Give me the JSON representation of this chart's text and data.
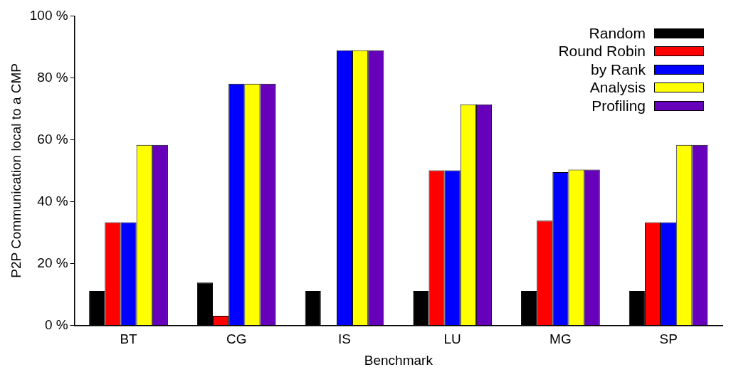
{
  "chart_data": {
    "type": "bar",
    "xlabel": "Benchmark",
    "ylabel": "P2P Communication local to a CMP",
    "categories": [
      "BT",
      "CG",
      "IS",
      "LU",
      "MG",
      "SP"
    ],
    "series": [
      {
        "name": "Random",
        "color": "#000000",
        "values": [
          11.1,
          13.8,
          11.1,
          11.1,
          11.1,
          11.1
        ]
      },
      {
        "name": "Round Robin",
        "color": "#ff0000",
        "values": [
          33.3,
          3.1,
          0,
          50.1,
          33.8,
          33.3
        ]
      },
      {
        "name": "by Rank",
        "color": "#0000ff",
        "values": [
          33.3,
          78.1,
          88.9,
          50.1,
          49.5,
          33.3
        ]
      },
      {
        "name": "Analysis",
        "color": "#ffff00",
        "values": [
          58.3,
          78.1,
          88.9,
          71.4,
          50.3,
          58.3
        ]
      },
      {
        "name": "Profiling",
        "color": "#6600bb",
        "values": [
          58.3,
          78.1,
          88.9,
          71.4,
          50.3,
          58.3
        ]
      }
    ],
    "ylim": [
      0,
      100
    ],
    "yticks": [
      {
        "value": 0,
        "label": "0 %"
      },
      {
        "value": 20,
        "label": "20 %"
      },
      {
        "value": 40,
        "label": "40 %"
      },
      {
        "value": 60,
        "label": "60 %"
      },
      {
        "value": 80,
        "label": "80 %"
      },
      {
        "value": 100,
        "label": "100 %"
      }
    ],
    "grid": false,
    "legend": "top right"
  }
}
